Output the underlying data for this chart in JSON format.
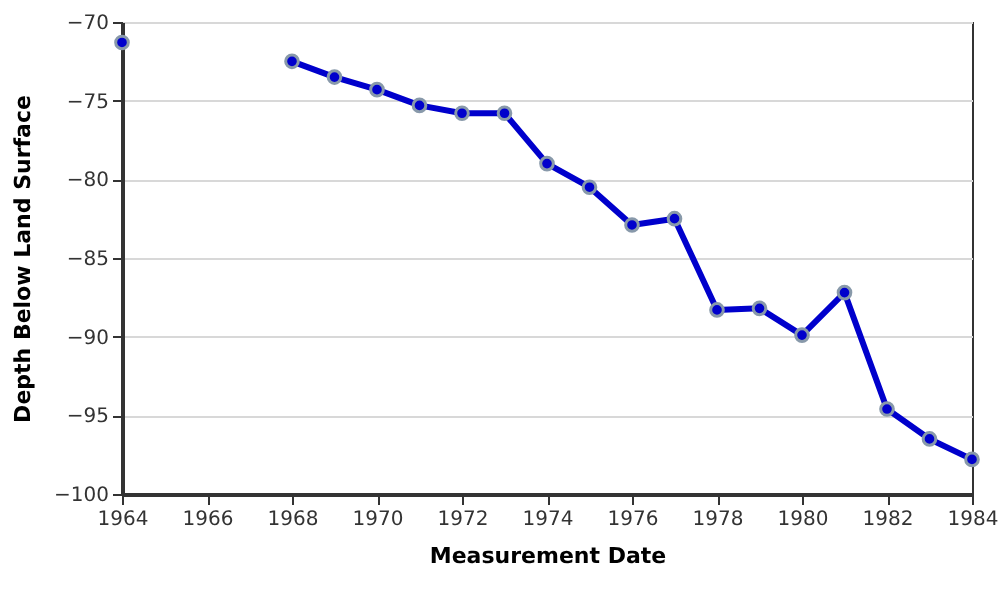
{
  "chart_data": {
    "type": "line",
    "xlabel": "Measurement Date",
    "ylabel": "Depth Below Land Surface",
    "x": [
      1964,
      1965,
      1966,
      1967,
      1968,
      1969,
      1970,
      1971,
      1972,
      1973,
      1974,
      1975,
      1976,
      1977,
      1978,
      1979,
      1980,
      1981,
      1982,
      1983,
      1984
    ],
    "series": [
      {
        "color": "#0000cc",
        "values": [
          -71.3,
          null,
          null,
          null,
          -72.5,
          -73.5,
          -74.3,
          -75.3,
          -75.8,
          -75.8,
          -79.0,
          -80.5,
          -82.9,
          -82.5,
          -88.3,
          -88.2,
          -89.9,
          -87.2,
          -94.6,
          -96.5,
          -97.8
        ]
      }
    ],
    "xlim": [
      1964,
      1984
    ],
    "xticks": [
      1964,
      1966,
      1968,
      1970,
      1972,
      1974,
      1976,
      1978,
      1980,
      1982,
      1984
    ],
    "ylim": [
      -100,
      -70
    ],
    "yticks": [
      -100,
      -95,
      -90,
      -85,
      -80,
      -75,
      -70
    ],
    "grid": "y",
    "marker": "circle",
    "line_style": "solid",
    "legend": false
  }
}
